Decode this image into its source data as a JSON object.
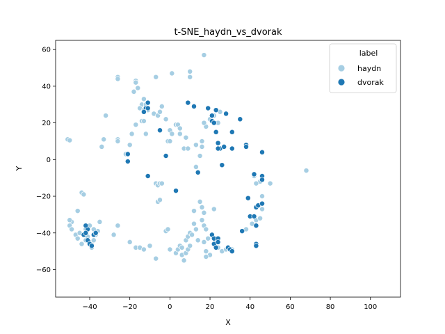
{
  "chart_data": {
    "type": "scatter",
    "title": "t-SNE_haydn_vs_dvorak",
    "xlabel": "X",
    "ylabel": "Y",
    "xlim": [
      -57,
      115
    ],
    "ylim": [
      -75,
      65
    ],
    "xticks": [
      -40,
      -20,
      0,
      20,
      40,
      60,
      80,
      100
    ],
    "yticks": [
      -60,
      -40,
      -20,
      0,
      20,
      40,
      60
    ],
    "grid": false,
    "legend": {
      "title": "label",
      "placement": "top-right"
    },
    "series": [
      {
        "name": "haydn",
        "color": "#a6cee3",
        "points": [
          [
            -51,
            11
          ],
          [
            -50,
            10.5
          ],
          [
            -26,
            45
          ],
          [
            -26,
            44
          ],
          [
            -7,
            45
          ],
          [
            1,
            47
          ],
          [
            10,
            48
          ],
          [
            10,
            45
          ],
          [
            17,
            57
          ],
          [
            -17,
            43
          ],
          [
            -17,
            42
          ],
          [
            -16,
            39
          ],
          [
            -18,
            37
          ],
          [
            -13,
            33
          ],
          [
            -14,
            30
          ],
          [
            -12,
            30
          ],
          [
            -15,
            28
          ],
          [
            -13,
            27
          ],
          [
            -11,
            27
          ],
          [
            -8,
            25
          ],
          [
            -6,
            24
          ],
          [
            -5,
            26
          ],
          [
            -4,
            29
          ],
          [
            -14,
            21
          ],
          [
            -13,
            21
          ],
          [
            -17,
            19
          ],
          [
            -19,
            14
          ],
          [
            -12,
            14
          ],
          [
            -26,
            11
          ],
          [
            -26,
            10
          ],
          [
            -32,
            24
          ],
          [
            -33,
            11
          ],
          [
            -34,
            7
          ],
          [
            -22,
            3
          ],
          [
            -20,
            8
          ],
          [
            -2,
            22
          ],
          [
            0,
            16
          ],
          [
            1,
            14
          ],
          [
            3,
            19
          ],
          [
            4,
            19
          ],
          [
            5,
            17
          ],
          [
            5,
            14
          ],
          [
            -1,
            10
          ],
          [
            0,
            10
          ],
          [
            7,
            6
          ],
          [
            9,
            6
          ],
          [
            8,
            12
          ],
          [
            13,
            8
          ],
          [
            15,
            2
          ],
          [
            16,
            7
          ],
          [
            16,
            10
          ],
          [
            18,
            18
          ],
          [
            17,
            20
          ],
          [
            20,
            22
          ],
          [
            22,
            24
          ],
          [
            25,
            26
          ],
          [
            13,
            -4
          ],
          [
            -7,
            -13
          ],
          [
            -6,
            -14
          ],
          [
            -5,
            -13
          ],
          [
            -6,
            -23
          ],
          [
            -5,
            -22
          ],
          [
            -4,
            -13
          ],
          [
            -44,
            -18
          ],
          [
            -43,
            -19
          ],
          [
            -46,
            -28
          ],
          [
            -49,
            -34
          ],
          [
            -50,
            -33
          ],
          [
            -50,
            -36
          ],
          [
            -49,
            -38
          ],
          [
            -47,
            -41
          ],
          [
            -46,
            -43
          ],
          [
            -45,
            -40
          ],
          [
            -44,
            -46
          ],
          [
            -42,
            -44
          ],
          [
            -41,
            -42
          ],
          [
            -39,
            -45
          ],
          [
            -38,
            -44
          ],
          [
            -37,
            -41
          ],
          [
            -36,
            -39
          ],
          [
            -38,
            -38
          ],
          [
            -40,
            -36
          ],
          [
            -42,
            -38
          ],
          [
            -35,
            -34
          ],
          [
            -39,
            -48
          ],
          [
            -26,
            -36
          ],
          [
            -28,
            -41
          ],
          [
            -20,
            -45
          ],
          [
            -17,
            -48
          ],
          [
            -15,
            -48
          ],
          [
            -13,
            -49
          ],
          [
            -10,
            -47
          ],
          [
            -7,
            -54
          ],
          [
            -2,
            -39
          ],
          [
            -1,
            -38
          ],
          [
            0,
            -49
          ],
          [
            3,
            -51
          ],
          [
            4,
            -49
          ],
          [
            5,
            -47
          ],
          [
            6,
            -48
          ],
          [
            6,
            -52
          ],
          [
            7,
            -55
          ],
          [
            8,
            -51
          ],
          [
            9,
            -49
          ],
          [
            10,
            -47
          ],
          [
            8,
            -44
          ],
          [
            9,
            -42
          ],
          [
            10,
            -40
          ],
          [
            11,
            -41
          ],
          [
            12,
            -28
          ],
          [
            12,
            -35
          ],
          [
            13,
            -38
          ],
          [
            14,
            -44
          ],
          [
            15,
            -23
          ],
          [
            16,
            -26
          ],
          [
            17,
            -29
          ],
          [
            16,
            -33
          ],
          [
            17,
            -36
          ],
          [
            18,
            -38
          ],
          [
            17,
            -45
          ],
          [
            19,
            -43
          ],
          [
            18,
            -50
          ],
          [
            20,
            -52
          ],
          [
            18,
            -53
          ],
          [
            22,
            -27
          ],
          [
            23,
            -45
          ],
          [
            24,
            -48
          ],
          [
            26,
            -50
          ],
          [
            28,
            -49
          ],
          [
            31,
            -49
          ],
          [
            38,
            -38
          ],
          [
            41,
            -35
          ],
          [
            43,
            -33
          ],
          [
            45,
            -32
          ],
          [
            46,
            -27
          ],
          [
            46,
            -20
          ],
          [
            45,
            -12
          ],
          [
            43,
            -13
          ],
          [
            42,
            -9
          ],
          [
            50,
            -13
          ],
          [
            68,
            -6
          ],
          [
            43,
            -46
          ],
          [
            28,
            25
          ],
          [
            24,
            20
          ],
          [
            19,
            28
          ]
        ]
      },
      {
        "name": "dvorak",
        "color": "#1f78b4",
        "points": [
          [
            -11,
            31
          ],
          [
            -12,
            28
          ],
          [
            -11,
            28
          ],
          [
            -13,
            26
          ],
          [
            -5,
            16
          ],
          [
            -2,
            2
          ],
          [
            -21,
            3
          ],
          [
            -21,
            -1
          ],
          [
            -11,
            -9
          ],
          [
            3,
            -17
          ],
          [
            9,
            31
          ],
          [
            12,
            29
          ],
          [
            14,
            -7
          ],
          [
            19,
            28
          ],
          [
            21,
            24
          ],
          [
            21,
            21
          ],
          [
            22,
            20
          ],
          [
            23,
            27
          ],
          [
            23,
            15
          ],
          [
            24,
            9
          ],
          [
            25,
            6
          ],
          [
            24,
            6
          ],
          [
            27,
            7
          ],
          [
            28,
            25
          ],
          [
            31,
            15
          ],
          [
            31,
            6
          ],
          [
            35,
            22
          ],
          [
            36,
            -39
          ],
          [
            26,
            -3
          ],
          [
            38,
            8
          ],
          [
            38,
            7
          ],
          [
            39,
            -21
          ],
          [
            40,
            -31
          ],
          [
            42,
            -31
          ],
          [
            43,
            -36
          ],
          [
            42,
            -8
          ],
          [
            43,
            -26
          ],
          [
            44,
            -25
          ],
          [
            46,
            -24
          ],
          [
            46,
            -9
          ],
          [
            46,
            -11
          ],
          [
            46,
            4
          ],
          [
            43,
            -46
          ],
          [
            43,
            -47
          ],
          [
            21,
            -41
          ],
          [
            22,
            -43
          ],
          [
            22,
            -46
          ],
          [
            23,
            -48
          ],
          [
            24,
            -43
          ],
          [
            24,
            -45
          ],
          [
            29,
            -48
          ],
          [
            30,
            -49
          ],
          [
            31,
            -50
          ],
          [
            -43,
            -41
          ],
          [
            -41,
            -44
          ],
          [
            -40,
            -46
          ],
          [
            -39,
            -47
          ],
          [
            -38,
            -41
          ],
          [
            -37,
            -40
          ],
          [
            -41,
            -38
          ],
          [
            -42,
            -40
          ],
          [
            -42,
            -36
          ]
        ]
      }
    ]
  }
}
